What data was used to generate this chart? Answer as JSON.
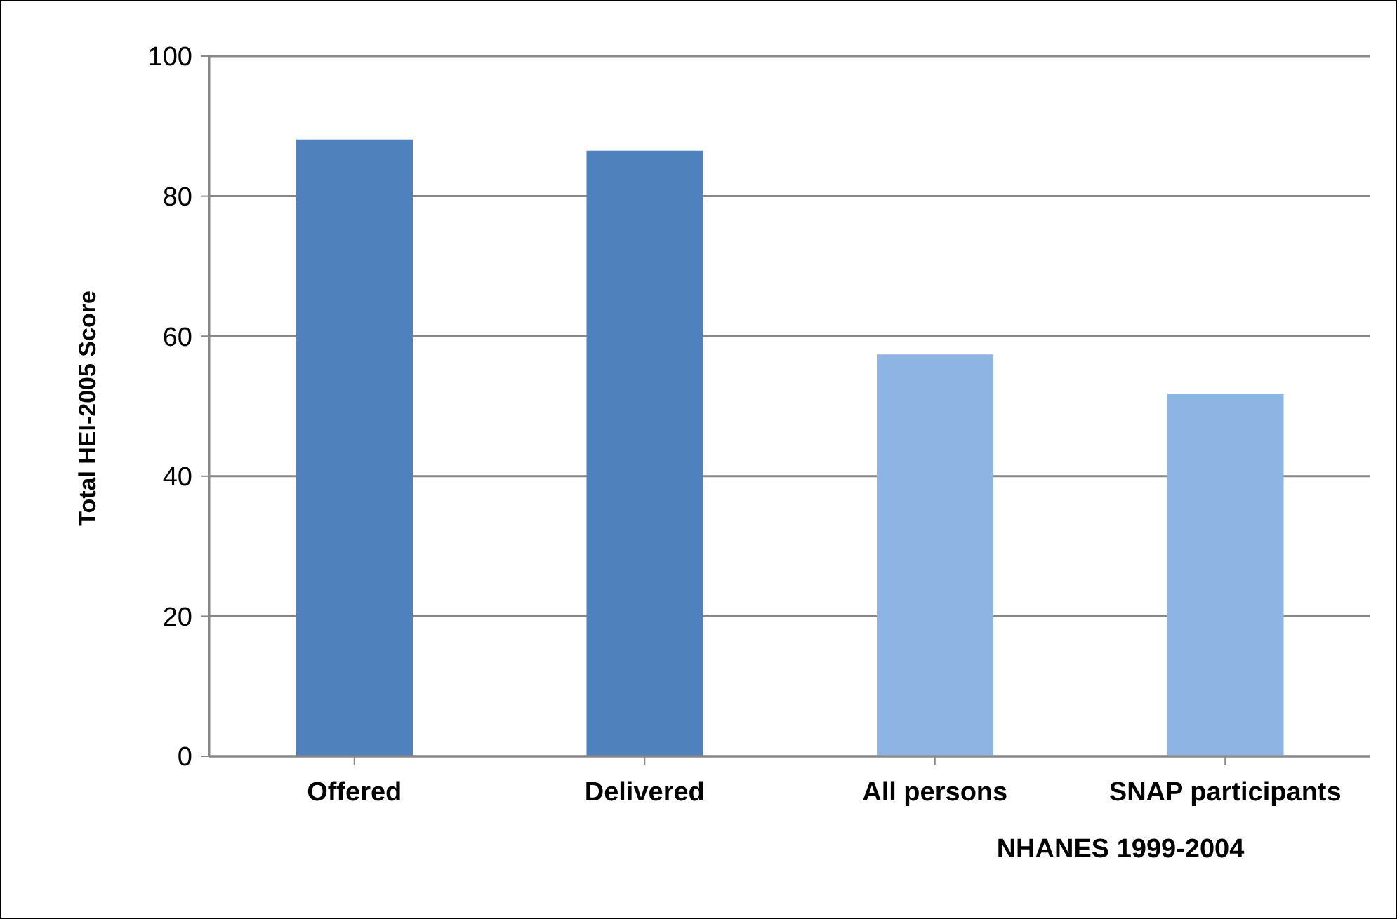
{
  "chart_data": {
    "type": "bar",
    "ylabel": "Total HEI-2005 Score",
    "categories": [
      "Offered",
      "Delivered",
      "All persons",
      "SNAP participants"
    ],
    "values": [
      88.1,
      86.5,
      57.4,
      51.8
    ],
    "colors": [
      "#4f81bd",
      "#4f81bd",
      "#8eb4e3",
      "#8eb4e3"
    ],
    "ylim": [
      0,
      100
    ],
    "yticks": [
      0,
      20,
      40,
      60,
      80,
      100
    ],
    "grid": "y",
    "annotations": [
      "NHANES 1999-2004"
    ]
  }
}
